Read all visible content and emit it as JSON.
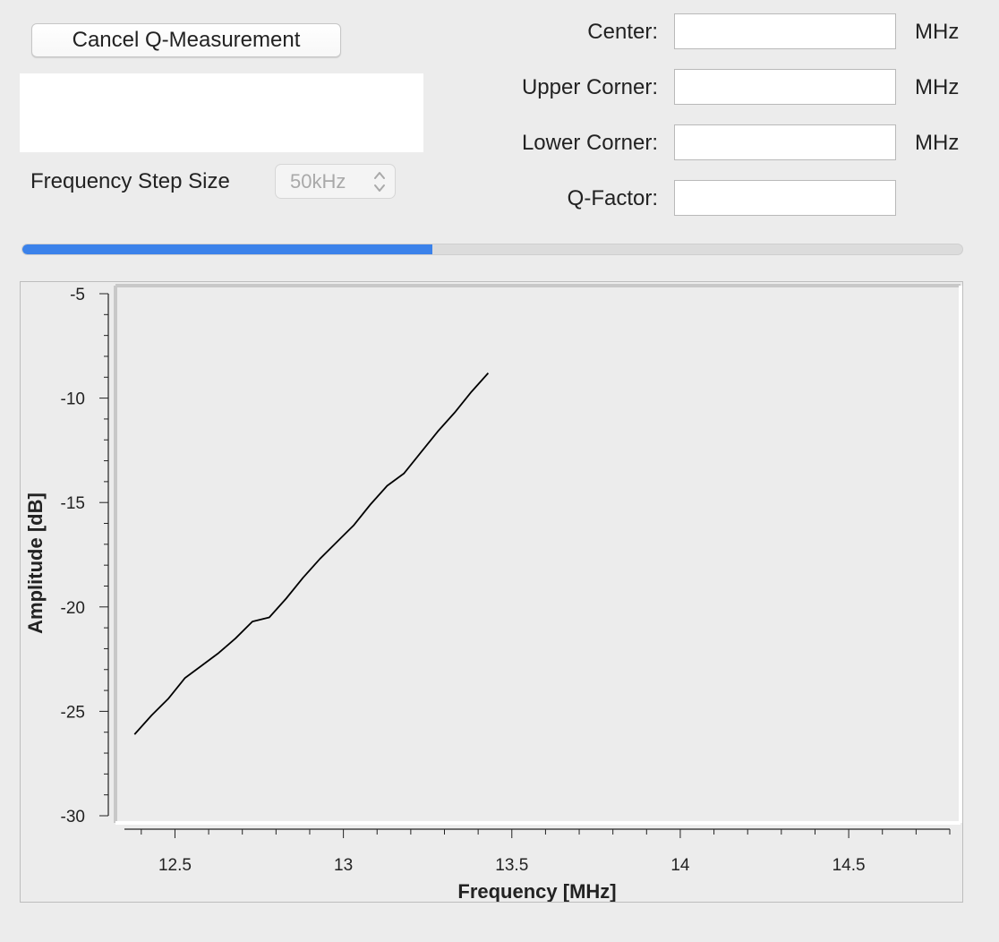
{
  "toolbar": {
    "cancel_label": "Cancel Q-Measurement"
  },
  "step_size": {
    "label": "Frequency Step Size",
    "value": "50kHz"
  },
  "fields": {
    "center": {
      "label": "Center:",
      "value": "",
      "unit": "MHz"
    },
    "upper": {
      "label": "Upper Corner:",
      "value": "",
      "unit": "MHz"
    },
    "lower": {
      "label": "Lower Corner:",
      "value": "",
      "unit": "MHz"
    },
    "qfactor": {
      "label": "Q-Factor:",
      "value": ""
    }
  },
  "progress": {
    "fraction": 0.436,
    "fill_color": "#3b82ea"
  },
  "chart_data": {
    "type": "line",
    "xlabel": "Frequency [MHz]",
    "ylabel": "Amplitude [dB]",
    "xlim": [
      12.35,
      14.8
    ],
    "ylim": [
      -30,
      -5
    ],
    "x_ticks": [
      {
        "value": 12.5,
        "label": "12.5"
      },
      {
        "value": 13,
        "label": "13"
      },
      {
        "value": 13.5,
        "label": "13.5"
      },
      {
        "value": 14,
        "label": "14"
      },
      {
        "value": 14.5,
        "label": "14.5"
      }
    ],
    "y_ticks": [
      {
        "value": -5,
        "label": "-5"
      },
      {
        "value": -10,
        "label": "-10"
      },
      {
        "value": -15,
        "label": "-15"
      },
      {
        "value": -20,
        "label": "-20"
      },
      {
        "value": -25,
        "label": "-25"
      },
      {
        "value": -30,
        "label": "-30"
      }
    ],
    "x_minor_step": 0.1,
    "y_minor_step": 1,
    "line_color": "#000000",
    "series": [
      {
        "x": [
          12.38,
          12.43,
          12.48,
          12.53,
          12.58,
          12.63,
          12.68,
          12.73,
          12.78,
          12.83,
          12.88,
          12.93,
          12.98,
          13.03,
          13.08,
          13.13,
          13.18,
          13.23,
          13.28,
          13.33,
          13.38,
          13.43
        ],
        "y": [
          -26.1,
          -25.2,
          -24.4,
          -23.4,
          -22.8,
          -22.2,
          -21.5,
          -20.7,
          -20.5,
          -19.6,
          -18.6,
          -17.7,
          -16.9,
          -16.1,
          -15.1,
          -14.2,
          -13.6,
          -12.6,
          -11.6,
          -10.7,
          -9.7,
          -8.8
        ]
      }
    ]
  }
}
